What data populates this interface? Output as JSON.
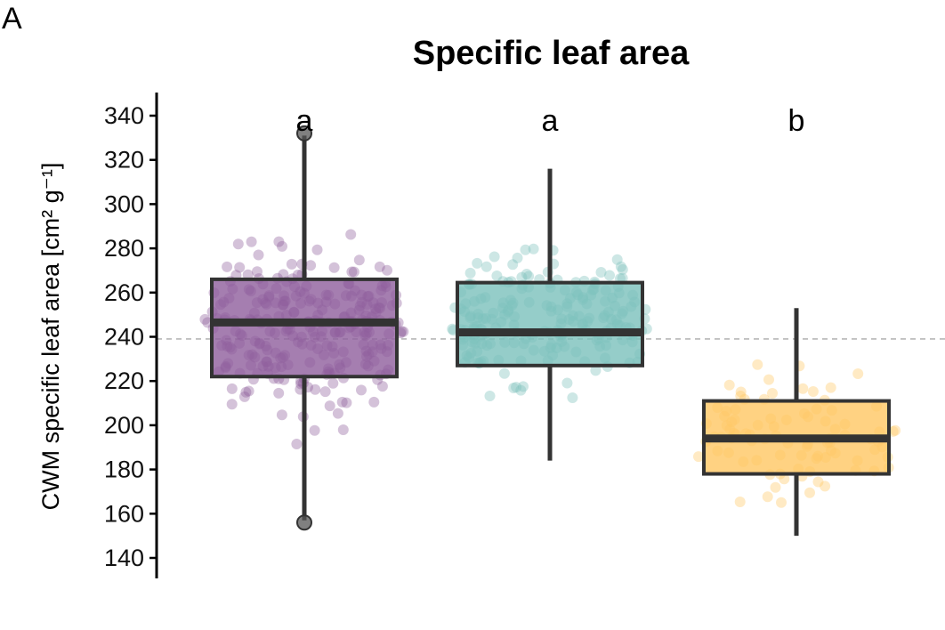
{
  "panel_label": "A",
  "chart_data": {
    "type": "box",
    "title": "Specific leaf area",
    "ylabel": "CWM specific leaf area [cm² g⁻¹]",
    "ylim": [
      132,
      350
    ],
    "yticks": [
      140,
      160,
      180,
      200,
      220,
      240,
      260,
      280,
      300,
      320,
      340
    ],
    "reference_line": 239,
    "groups": [
      {
        "letter": "a",
        "color": "#8E5E9C",
        "fill_opacity": 0.8,
        "min": 157,
        "q1": 222,
        "median": 246.5,
        "q3": 266,
        "max": 331,
        "outliers": [
          332,
          156
        ],
        "point_range": [
          156,
          332
        ],
        "n_points": 260
      },
      {
        "letter": "a",
        "color": "#7BC0BB",
        "fill_opacity": 0.8,
        "min": 184,
        "q1": 227,
        "median": 242,
        "q3": 264.5,
        "max": 316,
        "outliers": [],
        "point_range": [
          184,
          317
        ],
        "n_points": 200
      },
      {
        "letter": "b",
        "color": "#FFC763",
        "fill_opacity": 0.8,
        "min": 150,
        "q1": 178,
        "median": 194,
        "q3": 211,
        "max": 253,
        "outliers": [],
        "point_range": [
          150,
          254
        ],
        "n_points": 90
      }
    ]
  }
}
